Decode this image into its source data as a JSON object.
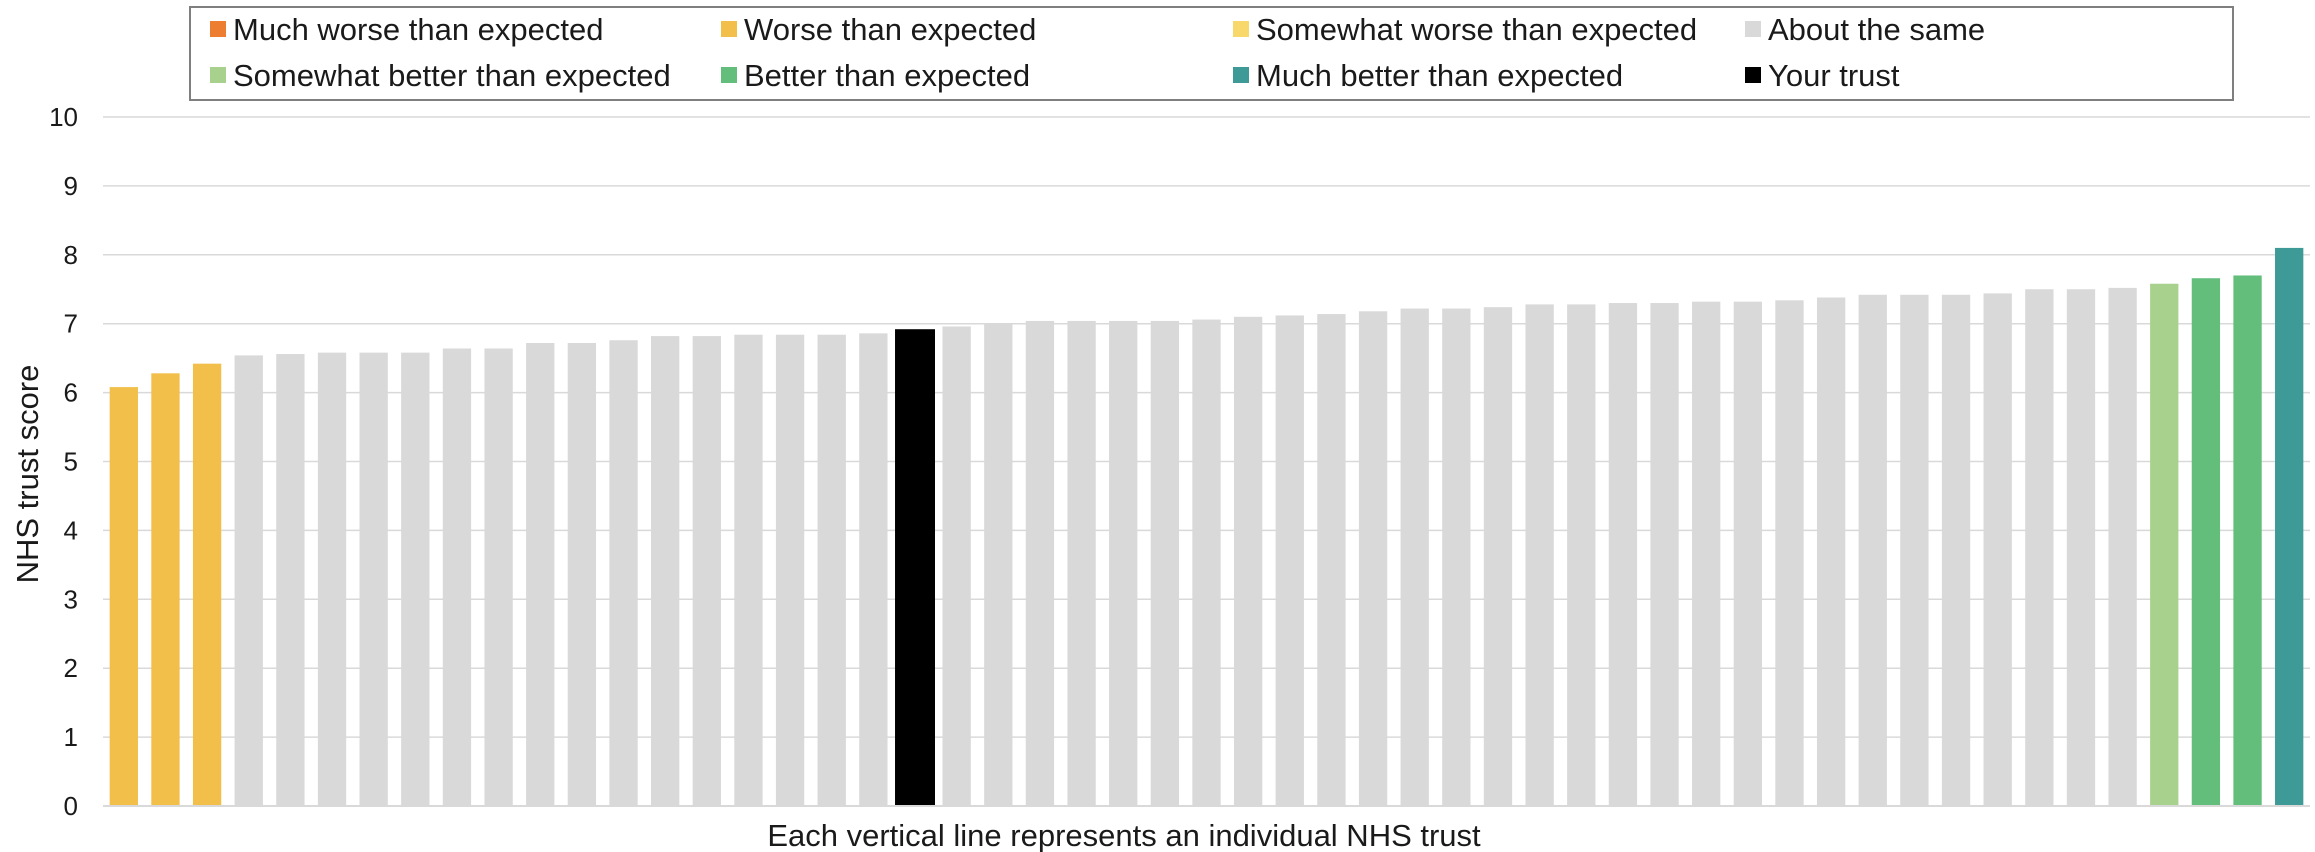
{
  "chart_data": {
    "type": "bar",
    "ylabel": "NHS trust score",
    "xlabel": "Each vertical line represents an individual NHS trust",
    "ylim": [
      0,
      10
    ],
    "yticks": [
      "0",
      "1",
      "2",
      "3",
      "4",
      "5",
      "6",
      "7",
      "8",
      "9",
      "10"
    ],
    "grid": true,
    "legend_position": "top",
    "legend": [
      {
        "label": "Much worse than expected",
        "color": "#ed7d31"
      },
      {
        "label": "Worse than expected",
        "color": "#f2bf4a"
      },
      {
        "label": "Somewhat worse than expected",
        "color": "#f8d86a"
      },
      {
        "label": "About the same",
        "color": "#d9d9d9"
      },
      {
        "label": "Somewhat better than expected",
        "color": "#a9d18e"
      },
      {
        "label": "Better than expected",
        "color": "#63be7b"
      },
      {
        "label": "Much better than expected",
        "color": "#3e9a96"
      },
      {
        "label": "Your trust",
        "color": "#000000"
      }
    ],
    "values": [
      6.08,
      6.28,
      6.42,
      6.54,
      6.56,
      6.58,
      6.58,
      6.58,
      6.64,
      6.64,
      6.72,
      6.72,
      6.76,
      6.82,
      6.82,
      6.84,
      6.84,
      6.84,
      6.86,
      6.92,
      6.96,
      7.0,
      7.04,
      7.04,
      7.04,
      7.04,
      7.06,
      7.1,
      7.12,
      7.14,
      7.18,
      7.22,
      7.22,
      7.24,
      7.28,
      7.28,
      7.3,
      7.3,
      7.32,
      7.32,
      7.34,
      7.38,
      7.42,
      7.42,
      7.42,
      7.44,
      7.5,
      7.5,
      7.52,
      7.58,
      7.66,
      7.7,
      8.1
    ],
    "categories": [
      "worse",
      "worse",
      "worse",
      "same",
      "same",
      "same",
      "same",
      "same",
      "same",
      "same",
      "same",
      "same",
      "same",
      "same",
      "same",
      "same",
      "same",
      "same",
      "same",
      "yours",
      "same",
      "same",
      "same",
      "same",
      "same",
      "same",
      "same",
      "same",
      "same",
      "same",
      "same",
      "same",
      "same",
      "same",
      "same",
      "same",
      "same",
      "same",
      "same",
      "same",
      "same",
      "same",
      "same",
      "same",
      "same",
      "same",
      "same",
      "same",
      "same",
      "somewhat_better",
      "better",
      "better",
      "much_better"
    ]
  }
}
